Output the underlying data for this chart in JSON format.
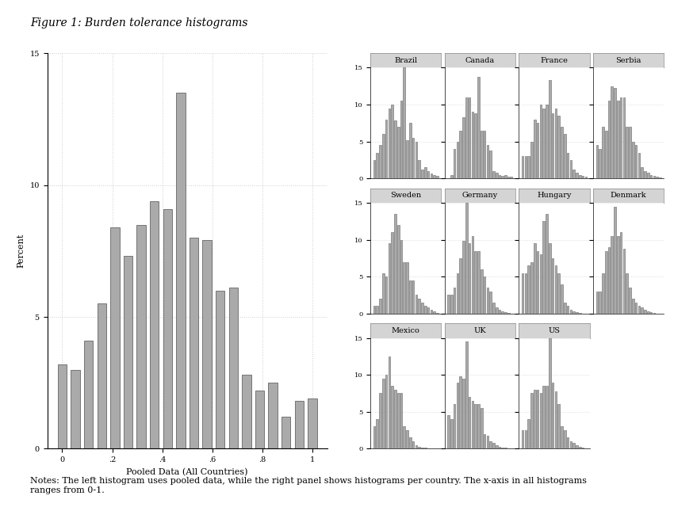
{
  "title": "Figure 1: Burden tolerance histograms",
  "note": "Notes: The left histogram uses pooled data, while the right panel shows histograms per country. The x-axis in all histograms\nranges from 0-1.",
  "pooled_ylabel": "Percent",
  "pooled_xlabel": "Pooled Data (All Countries)",
  "pooled_values": [
    3.2,
    3.0,
    4.1,
    5.5,
    8.4,
    7.3,
    8.5,
    9.4,
    9.1,
    13.5,
    8.0,
    7.9,
    6.0,
    6.1,
    2.8,
    2.2,
    2.5,
    1.2,
    1.8,
    1.9
  ],
  "countries_row1": [
    "Brazil",
    "Canada",
    "France",
    "Serbia"
  ],
  "countries_row2": [
    "Sweden",
    "Germany",
    "Hungary",
    "Denmark"
  ],
  "countries_row3": [
    "Mexico",
    "UK",
    "US",
    null
  ],
  "country_data": {
    "Brazil": [
      2.5,
      3.5,
      4.5,
      6.0,
      8.0,
      9.5,
      10.0,
      7.8,
      7.0,
      10.5,
      15.0,
      5.2,
      7.5,
      5.5,
      5.0,
      2.5,
      1.2,
      1.5,
      1.0,
      0.7,
      0.5,
      0.3
    ],
    "Canada": [
      0.0,
      0.5,
      4.0,
      5.0,
      6.5,
      8.3,
      11.0,
      11.0,
      9.0,
      8.8,
      13.8,
      6.5,
      6.5,
      4.5,
      3.8,
      1.0,
      0.8,
      0.5,
      0.3,
      0.5,
      0.2,
      0.2
    ],
    "France": [
      3.0,
      3.0,
      3.0,
      5.0,
      8.0,
      7.5,
      10.0,
      9.5,
      10.0,
      13.3,
      8.8,
      9.5,
      8.5,
      7.0,
      6.0,
      3.5,
      2.5,
      1.2,
      0.8,
      0.5,
      0.3,
      0.2
    ],
    "Serbia": [
      4.5,
      4.0,
      7.0,
      6.5,
      10.5,
      12.5,
      12.2,
      10.5,
      11.0,
      11.0,
      7.0,
      7.0,
      5.0,
      4.5,
      3.5,
      1.5,
      1.0,
      0.8,
      0.5,
      0.3,
      0.2,
      0.1
    ],
    "Sweden": [
      1.0,
      1.0,
      2.0,
      5.5,
      5.0,
      9.5,
      11.0,
      13.5,
      12.0,
      10.0,
      7.0,
      7.0,
      4.5,
      4.5,
      2.5,
      2.0,
      1.5,
      1.0,
      0.8,
      0.5,
      0.3,
      0.1
    ],
    "Germany": [
      2.5,
      2.5,
      3.5,
      5.5,
      7.5,
      9.8,
      15.0,
      9.5,
      10.5,
      8.5,
      8.5,
      6.0,
      5.0,
      3.5,
      3.0,
      1.5,
      0.8,
      0.5,
      0.3,
      0.2,
      0.1,
      0.0
    ],
    "Hungary": [
      5.5,
      5.5,
      6.5,
      7.0,
      9.5,
      8.5,
      8.0,
      12.5,
      13.5,
      9.5,
      7.5,
      6.5,
      5.5,
      4.0,
      1.5,
      1.0,
      0.5,
      0.3,
      0.2,
      0.1,
      0.0,
      0.0
    ],
    "Denmark": [
      3.0,
      3.0,
      5.5,
      8.5,
      9.0,
      10.5,
      14.5,
      10.5,
      11.0,
      8.8,
      5.5,
      3.5,
      2.0,
      1.5,
      1.0,
      0.8,
      0.5,
      0.3,
      0.2,
      0.1,
      0.0,
      0.0
    ],
    "Mexico": [
      3.0,
      4.0,
      7.5,
      9.5,
      10.0,
      12.5,
      8.5,
      8.0,
      7.5,
      7.5,
      3.0,
      2.5,
      1.5,
      1.0,
      0.5,
      0.3,
      0.2,
      0.1,
      0.0,
      0.0,
      0.0,
      0.0
    ],
    "UK": [
      4.5,
      4.0,
      6.0,
      9.0,
      9.8,
      9.5,
      14.5,
      7.0,
      6.5,
      6.0,
      6.0,
      5.5,
      2.0,
      1.8,
      1.0,
      0.8,
      0.5,
      0.3,
      0.2,
      0.1,
      0.0,
      0.0
    ],
    "US": [
      2.5,
      2.5,
      4.0,
      7.5,
      8.0,
      8.0,
      7.5,
      8.5,
      8.5,
      15.0,
      9.0,
      7.8,
      6.0,
      3.0,
      2.5,
      1.5,
      1.0,
      0.8,
      0.5,
      0.3,
      0.1,
      0.0
    ]
  },
  "bar_color": "#aaaaaa",
  "bar_edgecolor": "#666666",
  "bg_color": "#ffffff",
  "grid_color": "#cccccc",
  "ylim_main": [
    0,
    15
  ],
  "ylim_sub": [
    0,
    15
  ],
  "xticks_main": [
    0,
    0.2,
    0.4,
    0.6,
    0.8,
    1.0
  ],
  "xtick_labels_main": [
    "0",
    ".2",
    ".4",
    ".6",
    ".8",
    "1"
  ],
  "yticks_main": [
    0,
    5,
    10,
    15
  ],
  "yticks_sub": [
    0,
    5,
    10,
    15
  ],
  "title_fontsize": 10,
  "note_fontsize": 8,
  "label_fontsize": 8,
  "tick_fontsize": 7,
  "country_label_fontsize": 7,
  "n_bins_main": 20,
  "n_bins_sub": 22
}
